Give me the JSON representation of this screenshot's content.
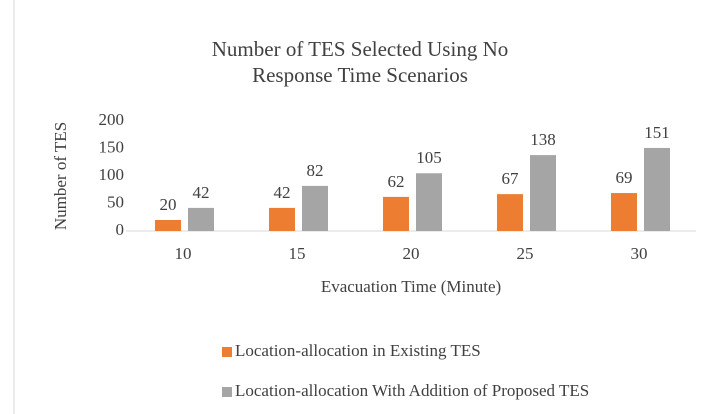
{
  "chart_data": {
    "type": "bar",
    "title": "Number of TES Selected Using No Response Time Scenarios",
    "x_label": "Evacuation Time (Minute)",
    "y_label": "Number of TES",
    "categories": [
      "10",
      "15",
      "20",
      "25",
      "30"
    ],
    "series": [
      {
        "name": "Location-allocation in Existing TES",
        "color": "#ed7d31",
        "values": [
          20,
          42,
          62,
          67,
          69
        ]
      },
      {
        "name": "Location-allocation With Addition of Proposed TES",
        "color": "#a5a5a5",
        "values": [
          42,
          82,
          105,
          138,
          151
        ]
      }
    ],
    "ylim": [
      0,
      200
    ],
    "yticks": [
      0,
      50,
      100,
      150,
      200
    ],
    "grid": false,
    "legend": "bottom"
  }
}
